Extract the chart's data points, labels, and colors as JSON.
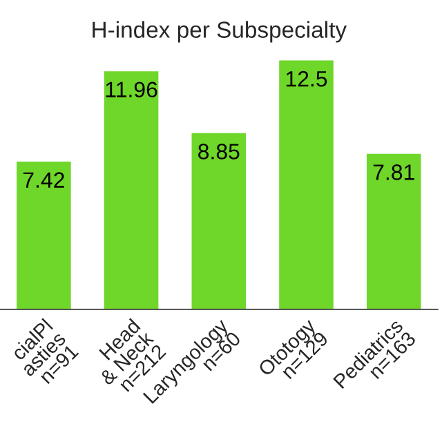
{
  "chart_data": {
    "type": "bar",
    "title": "H-index per Subspecialty",
    "categories": [
      "cialPl\nasties\nn=91",
      "Head\n& Neck\nn=212",
      "Laryngology\nn=60",
      "Ototogy\nn=129",
      "Pediatrics\nn=163"
    ],
    "values": [
      7.42,
      11.96,
      8.85,
      12.5,
      7.81
    ],
    "color": "#6fd62a",
    "data_labels": true,
    "grid": false,
    "legend": false
  }
}
